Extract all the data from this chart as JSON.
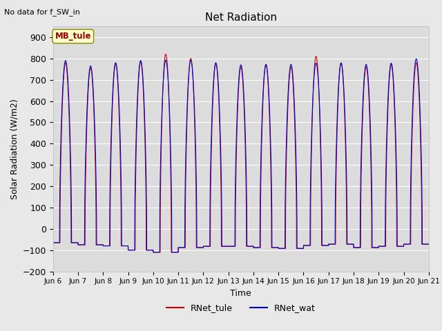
{
  "title": "Net Radiation",
  "subtitle": "No data for f_SW_in",
  "xlabel": "Time",
  "ylabel": "Solar Radiation (W/m2)",
  "ylim": [
    -200,
    950
  ],
  "yticks": [
    -200,
    -100,
    0,
    100,
    200,
    300,
    400,
    500,
    600,
    700,
    800,
    900
  ],
  "xtick_labels": [
    "Jun 6",
    "Jun 7",
    "Jun 8",
    "Jun 9",
    "Jun 10",
    "Jun 11",
    "Jun 12",
    "Jun 13",
    "Jun 14",
    "Jun 15",
    "Jun 16",
    "Jun 17",
    "Jun 18",
    "Jun 19",
    "Jun 20",
    "Jun 21"
  ],
  "legend_entries": [
    "RNet_tule",
    "RNet_wat"
  ],
  "rnet_tule_color": "#cc0000",
  "rnet_wat_color": "#0000cc",
  "background_color": "#e8e8e8",
  "plot_bg_color": "#dcdcdc",
  "grid_color": "#ffffff",
  "station_label": "MB_tule",
  "station_label_color": "#990000",
  "station_label_bg": "#ffffcc",
  "n_days": 15,
  "peak_tule": [
    780,
    755,
    775,
    785,
    820,
    800,
    775,
    760,
    770,
    760,
    810,
    780,
    760,
    770,
    780
  ],
  "peak_wat": [
    790,
    765,
    780,
    790,
    792,
    792,
    780,
    770,
    772,
    772,
    778,
    778,
    772,
    778,
    798
  ],
  "night_tule": [
    -65,
    -75,
    -80,
    -100,
    -110,
    -88,
    -82,
    -82,
    -88,
    -92,
    -78,
    -72,
    -88,
    -82,
    -72
  ],
  "night_wat": [
    -65,
    -75,
    -80,
    -100,
    -110,
    -88,
    -82,
    -82,
    -88,
    -92,
    -78,
    -72,
    -88,
    -82,
    -72
  ]
}
